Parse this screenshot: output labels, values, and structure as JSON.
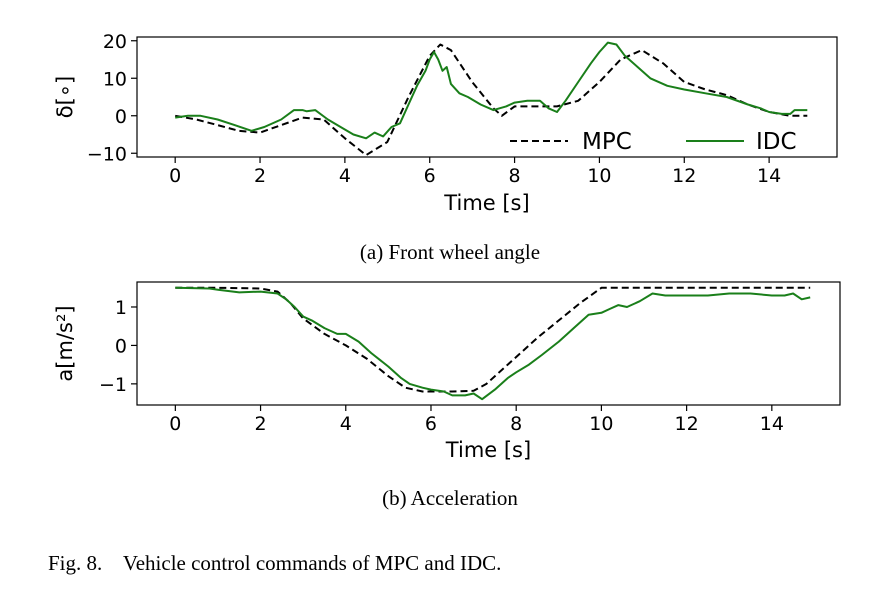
{
  "figure_caption": "Fig. 8.    Vehicle control commands of MPC and IDC.",
  "chart_data": [
    {
      "type": "line",
      "caption": "(a) Front wheel angle",
      "xlabel": "Time [s]",
      "ylabel": "δ[∘]",
      "xlim": [
        -0.9,
        15.6
      ],
      "ylim": [
        -11,
        21
      ],
      "xticks": [
        0,
        2,
        4,
        6,
        8,
        10,
        12,
        14
      ],
      "yticks": [
        -10,
        0,
        10,
        20
      ],
      "ytick_labels": [
        "−10",
        "0",
        "10",
        "20"
      ],
      "grid": false,
      "legend": {
        "placement": "bottom-right",
        "columns": 2
      },
      "series": [
        {
          "name": "MPC",
          "color": "#000000",
          "dash": "dashed",
          "x": [
            0,
            0.5,
            1.0,
            1.5,
            2.0,
            2.5,
            3.0,
            3.5,
            4.0,
            4.5,
            5.0,
            5.5,
            6.0,
            6.25,
            6.5,
            7.0,
            7.5,
            7.7,
            8.0,
            8.5,
            9.0,
            9.5,
            10.0,
            10.5,
            11.0,
            11.5,
            12.0,
            12.5,
            13.0,
            13.5,
            14.0,
            14.5,
            14.9
          ],
          "y": [
            0,
            -1,
            -2.5,
            -4,
            -4.5,
            -2.5,
            -0.5,
            -1,
            -6,
            -10.5,
            -7,
            5,
            16,
            19,
            17.5,
            9,
            2,
            0,
            2.5,
            2.5,
            2.5,
            4,
            9,
            15,
            17.5,
            14,
            9,
            7,
            5.5,
            3,
            1,
            0,
            0
          ]
        },
        {
          "name": "IDC",
          "color": "#1a7f1a",
          "dash": "solid",
          "x": [
            0,
            0.3,
            0.6,
            1.0,
            1.4,
            1.8,
            2.1,
            2.5,
            2.8,
            3.0,
            3.1,
            3.3,
            3.6,
            3.9,
            4.2,
            4.5,
            4.7,
            4.9,
            5.1,
            5.3,
            5.5,
            5.7,
            5.9,
            6.0,
            6.1,
            6.2,
            6.3,
            6.4,
            6.5,
            6.7,
            6.9,
            7.2,
            7.5,
            7.8,
            8.0,
            8.3,
            8.6,
            8.8,
            9.0,
            9.2,
            9.5,
            9.8,
            10.0,
            10.2,
            10.4,
            10.6,
            10.9,
            11.2,
            11.6,
            12.0,
            12.5,
            13.0,
            13.5,
            13.8,
            14.0,
            14.3,
            14.5,
            14.6,
            14.9
          ],
          "y": [
            -0.5,
            0,
            0,
            -1,
            -2.5,
            -4,
            -3,
            -1,
            1.5,
            1.5,
            1.2,
            1.5,
            -1,
            -3,
            -5,
            -6,
            -4.5,
            -5.5,
            -3,
            -2,
            3,
            8,
            12,
            15,
            17,
            15,
            12,
            13,
            8.5,
            6,
            5,
            3,
            1.5,
            2.5,
            3.5,
            4,
            4,
            2,
            1,
            4,
            9,
            14,
            17,
            19.5,
            19,
            16,
            13,
            10,
            8,
            7,
            6,
            5,
            3,
            2,
            1,
            0.5,
            0.5,
            1.5,
            1.5
          ]
        }
      ]
    },
    {
      "type": "line",
      "caption": "(b) Acceleration",
      "xlabel": "Time [s]",
      "ylabel": "a[m/s²]",
      "xlim": [
        -0.9,
        15.6
      ],
      "ylim": [
        -1.55,
        1.65
      ],
      "xticks": [
        0,
        2,
        4,
        6,
        8,
        10,
        12,
        14
      ],
      "yticks": [
        -1,
        0,
        1
      ],
      "ytick_labels": [
        "−1",
        "0",
        "1"
      ],
      "grid": false,
      "series": [
        {
          "name": "MPC",
          "color": "#000000",
          "dash": "dashed",
          "x": [
            0,
            1.0,
            2.0,
            2.4,
            2.7,
            3.0,
            3.5,
            4.0,
            4.5,
            5.0,
            5.4,
            5.8,
            6.0,
            6.5,
            7.0,
            7.3,
            7.7,
            8.0,
            8.5,
            9.0,
            9.5,
            10.0,
            10.3,
            11.0,
            12.0,
            13.0,
            14.0,
            14.9
          ],
          "y": [
            1.5,
            1.5,
            1.48,
            1.4,
            1.1,
            0.7,
            0.3,
            0,
            -0.35,
            -0.8,
            -1.1,
            -1.2,
            -1.2,
            -1.2,
            -1.18,
            -1.0,
            -0.6,
            -0.3,
            0.2,
            0.65,
            1.1,
            1.5,
            1.5,
            1.5,
            1.5,
            1.5,
            1.5,
            1.5
          ]
        },
        {
          "name": "IDC",
          "color": "#1a7f1a",
          "dash": "solid",
          "x": [
            0,
            0.8,
            1.0,
            1.5,
            2.0,
            2.4,
            2.6,
            2.8,
            3.0,
            3.2,
            3.5,
            3.8,
            4.0,
            4.3,
            4.6,
            5.0,
            5.3,
            5.5,
            5.8,
            6.0,
            6.3,
            6.5,
            6.8,
            7.0,
            7.2,
            7.5,
            7.8,
            8.0,
            8.3,
            8.6,
            9.0,
            9.4,
            9.7,
            10.0,
            10.2,
            10.4,
            10.6,
            10.9,
            11.2,
            11.5,
            12.0,
            12.5,
            13.0,
            13.5,
            14.0,
            14.3,
            14.5,
            14.7,
            14.9
          ],
          "y": [
            1.5,
            1.48,
            1.45,
            1.38,
            1.4,
            1.35,
            1.2,
            1.0,
            0.75,
            0.65,
            0.45,
            0.3,
            0.3,
            0.1,
            -0.2,
            -0.55,
            -0.85,
            -1.0,
            -1.1,
            -1.15,
            -1.2,
            -1.3,
            -1.3,
            -1.25,
            -1.4,
            -1.15,
            -0.85,
            -0.7,
            -0.5,
            -0.25,
            0.1,
            0.5,
            0.8,
            0.85,
            0.95,
            1.05,
            1.0,
            1.15,
            1.35,
            1.3,
            1.3,
            1.3,
            1.35,
            1.35,
            1.3,
            1.3,
            1.35,
            1.2,
            1.25
          ]
        }
      ]
    }
  ]
}
